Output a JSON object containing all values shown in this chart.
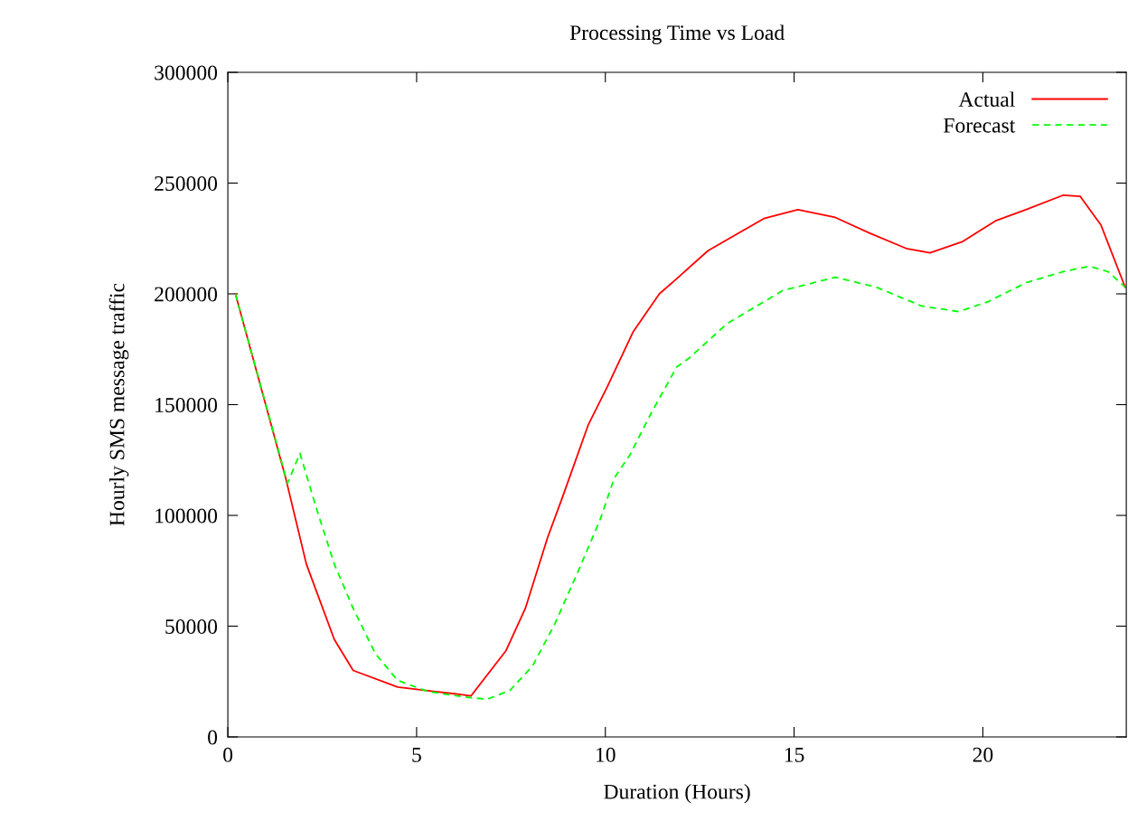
{
  "chart_data": {
    "type": "line",
    "title": "Processing Time vs Load",
    "xlabel": "Duration (Hours)",
    "ylabel": "Hourly SMS message traffic",
    "xlim": [
      0,
      23.8
    ],
    "xticks": [
      0,
      5,
      10,
      15,
      20
    ],
    "ylim": [
      0,
      300000
    ],
    "yticks": [
      0,
      50000,
      100000,
      150000,
      200000,
      250000,
      300000
    ],
    "grid": false,
    "legend": "top right",
    "marker": "none",
    "series": [
      {
        "name": "Actual",
        "color": "#ff0000",
        "line_style": "solid",
        "x": [
          0.2,
          1.53,
          2.08,
          2.82,
          3.32,
          4.5,
          5.5,
          6.0,
          6.44,
          7.37,
          7.88,
          8.47,
          8.86,
          9.55,
          10.05,
          10.74,
          11.43,
          11.9,
          12.72,
          14.2,
          15.1,
          16.09,
          16.99,
          17.97,
          18.6,
          19.45,
          20.34,
          21.14,
          22.12,
          22.58,
          23.13,
          23.77
        ],
        "values": [
          200000,
          117000,
          78000,
          44000,
          30000,
          22500,
          20500,
          19500,
          18500,
          39000,
          58000,
          90000,
          108000,
          141000,
          158000,
          183000,
          200000,
          207000,
          219500,
          234000,
          238000,
          234500,
          227500,
          220500,
          218500,
          223500,
          233000,
          238000,
          244500,
          244000,
          231000,
          203000
        ]
      },
      {
        "name": "Forecast",
        "color": "#00ff00",
        "line_style": "dashed",
        "x": [
          0.2,
          1.58,
          1.91,
          2.34,
          2.82,
          3.32,
          3.91,
          4.5,
          5.3,
          6.28,
          6.87,
          7.47,
          8.07,
          8.66,
          9.26,
          9.86,
          10.24,
          10.64,
          11.24,
          11.89,
          12.22,
          13.22,
          14.7,
          16.09,
          17.18,
          18.38,
          19.36,
          20.14,
          21.14,
          22.12,
          22.82,
          23.32,
          23.77
        ],
        "values": [
          200000,
          114500,
          128000,
          103500,
          78000,
          58000,
          37500,
          25500,
          20500,
          18000,
          17000,
          21000,
          32000,
          51000,
          74000,
          98000,
          117000,
          127000,
          147000,
          167000,
          171000,
          186500,
          201500,
          207500,
          203000,
          194500,
          192000,
          196500,
          205000,
          210000,
          212500,
          210000,
          203000
        ]
      }
    ]
  }
}
